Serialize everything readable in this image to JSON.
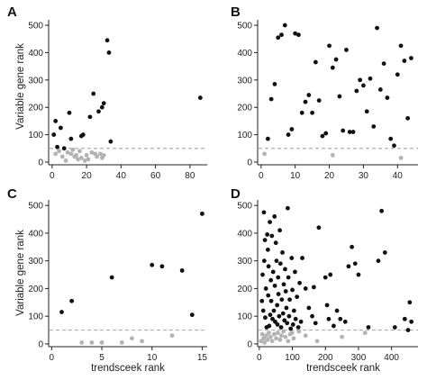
{
  "figure": {
    "ylabel_top": "Variable gene rank",
    "ylabel_bottom": "Variable gene rank",
    "xlabel_left": "trendsceek rank",
    "xlabel_right": "trendsceek rank"
  },
  "colors": {
    "significant": "#111111",
    "non_significant": "#b3b3b3",
    "threshold": "#b0b0b0",
    "axis": "#222222"
  },
  "chart_data": [
    {
      "panel": "A",
      "type": "scatter",
      "xlim": [
        -2,
        90
      ],
      "ylim": [
        -10,
        520
      ],
      "xticks": [
        0,
        20,
        40,
        60,
        80
      ],
      "yticks": [
        0,
        100,
        200,
        300,
        400,
        500
      ],
      "threshold": 50,
      "series": [
        {
          "kind": "significant",
          "points": [
            [
              1,
              100
            ],
            [
              2,
              150
            ],
            [
              3,
              55
            ],
            [
              5,
              125
            ],
            [
              7,
              50
            ],
            [
              10,
              180
            ],
            [
              11,
              85
            ],
            [
              17,
              95
            ],
            [
              18,
              100
            ],
            [
              22,
              165
            ],
            [
              24,
              250
            ],
            [
              27,
              185
            ],
            [
              29,
              200
            ],
            [
              30,
              215
            ],
            [
              32,
              445
            ],
            [
              33,
              400
            ],
            [
              34,
              75
            ],
            [
              86,
              235
            ]
          ]
        },
        {
          "kind": "non_significant",
          "points": [
            [
              2,
              30
            ],
            [
              4,
              40
            ],
            [
              6,
              20
            ],
            [
              8,
              5
            ],
            [
              9,
              35
            ],
            [
              11,
              30
            ],
            [
              12,
              45
            ],
            [
              13,
              20
            ],
            [
              14,
              25
            ],
            [
              15,
              10
            ],
            [
              16,
              40
            ],
            [
              17,
              15
            ],
            [
              19,
              5
            ],
            [
              20,
              25
            ],
            [
              21,
              10
            ],
            [
              23,
              35
            ],
            [
              25,
              30
            ],
            [
              26,
              20
            ],
            [
              28,
              30
            ],
            [
              29,
              15
            ],
            [
              30,
              25
            ]
          ]
        }
      ]
    },
    {
      "panel": "B",
      "type": "scatter",
      "xlim": [
        -1,
        46
      ],
      "ylim": [
        -10,
        520
      ],
      "xticks": [
        0,
        10,
        20,
        30,
        40
      ],
      "yticks": [
        0,
        100,
        200,
        300,
        400,
        500
      ],
      "threshold": 50,
      "series": [
        {
          "kind": "significant",
          "points": [
            [
              2,
              85
            ],
            [
              3,
              230
            ],
            [
              4,
              285
            ],
            [
              5,
              455
            ],
            [
              6,
              465
            ],
            [
              7,
              500
            ],
            [
              8,
              100
            ],
            [
              9,
              120
            ],
            [
              10,
              470
            ],
            [
              11,
              465
            ],
            [
              12,
              180
            ],
            [
              13,
              220
            ],
            [
              14,
              245
            ],
            [
              15,
              180
            ],
            [
              16,
              365
            ],
            [
              17,
              225
            ],
            [
              18,
              95
            ],
            [
              19,
              105
            ],
            [
              20,
              425
            ],
            [
              21,
              345
            ],
            [
              22,
              375
            ],
            [
              23,
              240
            ],
            [
              24,
              115
            ],
            [
              25,
              410
            ],
            [
              26,
              110
            ],
            [
              27,
              110
            ],
            [
              28,
              260
            ],
            [
              29,
              300
            ],
            [
              30,
              280
            ],
            [
              31,
              185
            ],
            [
              32,
              305
            ],
            [
              33,
              130
            ],
            [
              34,
              490
            ],
            [
              35,
              265
            ],
            [
              36,
              360
            ],
            [
              37,
              235
            ],
            [
              38,
              85
            ],
            [
              39,
              60
            ],
            [
              40,
              320
            ],
            [
              41,
              425
            ],
            [
              42,
              370
            ],
            [
              43,
              160
            ],
            [
              44,
              380
            ]
          ]
        },
        {
          "kind": "non_significant",
          "points": [
            [
              1,
              30
            ],
            [
              21,
              25
            ],
            [
              41,
              15
            ]
          ]
        }
      ]
    },
    {
      "panel": "C",
      "type": "scatter",
      "xlim": [
        -0.3,
        15.5
      ],
      "ylim": [
        -10,
        520
      ],
      "xticks": [
        0,
        5,
        10,
        15
      ],
      "yticks": [
        0,
        100,
        200,
        300,
        400,
        500
      ],
      "threshold": 50,
      "series": [
        {
          "kind": "significant",
          "points": [
            [
              1,
              115
            ],
            [
              2,
              155
            ],
            [
              6,
              240
            ],
            [
              10,
              285
            ],
            [
              11,
              280
            ],
            [
              13,
              265
            ],
            [
              14,
              105
            ],
            [
              15,
              470
            ]
          ]
        },
        {
          "kind": "non_significant",
          "points": [
            [
              3,
              5
            ],
            [
              4,
              5
            ],
            [
              5,
              5
            ],
            [
              7,
              5
            ],
            [
              8,
              20
            ],
            [
              9,
              10
            ],
            [
              12,
              30
            ]
          ]
        }
      ]
    },
    {
      "panel": "D",
      "type": "scatter",
      "xlim": [
        -5,
        480
      ],
      "ylim": [
        -10,
        520
      ],
      "xticks": [
        0,
        100,
        200,
        300,
        400
      ],
      "yticks": [
        0,
        100,
        200,
        300,
        400,
        500
      ],
      "threshold": 50,
      "series": [
        {
          "kind": "significant",
          "points": [
            [
              8,
              155
            ],
            [
              10,
              250
            ],
            [
              12,
              120
            ],
            [
              14,
              475
            ],
            [
              15,
              300
            ],
            [
              17,
              375
            ],
            [
              18,
              95
            ],
            [
              20,
              200
            ],
            [
              22,
              60
            ],
            [
              24,
              395
            ],
            [
              26,
              340
            ],
            [
              27,
              175
            ],
            [
              28,
              280
            ],
            [
              30,
              65
            ],
            [
              32,
              440
            ],
            [
              33,
              105
            ],
            [
              35,
              230
            ],
            [
              36,
              155
            ],
            [
              38,
              390
            ],
            [
              40,
              90
            ],
            [
              42,
              260
            ],
            [
              44,
              120
            ],
            [
              46,
              460
            ],
            [
              47,
              210
            ],
            [
              48,
              80
            ],
            [
              50,
              365
            ],
            [
              52,
              300
            ],
            [
              54,
              140
            ],
            [
              55,
              70
            ],
            [
              57,
              240
            ],
            [
              58,
              180
            ],
            [
              60,
              100
            ],
            [
              62,
              410
            ],
            [
              64,
              290
            ],
            [
              66,
              60
            ],
            [
              68,
              160
            ],
            [
              70,
              330
            ],
            [
              72,
              110
            ],
            [
              74,
              215
            ],
            [
              76,
              85
            ],
            [
              78,
              270
            ],
            [
              80,
              190
            ],
            [
              82,
              130
            ],
            [
              84,
              75
            ],
            [
              86,
              490
            ],
            [
              88,
              240
            ],
            [
              90,
              100
            ],
            [
              92,
              160
            ],
            [
              95,
              55
            ],
            [
              98,
              310
            ],
            [
              100,
              195
            ],
            [
              102,
              70
            ],
            [
              105,
              120
            ],
            [
              108,
              260
            ],
            [
              110,
              90
            ],
            [
              114,
              170
            ],
            [
              118,
              60
            ],
            [
              122,
              220
            ],
            [
              126,
              80
            ],
            [
              130,
              310
            ],
            [
              140,
              200
            ],
            [
              150,
              130
            ],
            [
              160,
              100
            ],
            [
              165,
              205
            ],
            [
              170,
              75
            ],
            [
              180,
              420
            ],
            [
              200,
              240
            ],
            [
              205,
              140
            ],
            [
              210,
              90
            ],
            [
              215,
              250
            ],
            [
              225,
              65
            ],
            [
              235,
              120
            ],
            [
              245,
              90
            ],
            [
              260,
              80
            ],
            [
              270,
              280
            ],
            [
              280,
              350
            ],
            [
              290,
              290
            ],
            [
              300,
              250
            ],
            [
              330,
              60
            ],
            [
              360,
              300
            ],
            [
              370,
              480
            ],
            [
              380,
              330
            ],
            [
              410,
              60
            ],
            [
              440,
              90
            ],
            [
              450,
              50
            ],
            [
              455,
              150
            ],
            [
              460,
              80
            ]
          ]
        },
        {
          "kind": "non_significant",
          "points": [
            [
              5,
              10
            ],
            [
              9,
              35
            ],
            [
              13,
              20
            ],
            [
              16,
              5
            ],
            [
              21,
              30
            ],
            [
              25,
              15
            ],
            [
              29,
              40
            ],
            [
              34,
              25
            ],
            [
              39,
              10
            ],
            [
              45,
              35
            ],
            [
              51,
              20
            ],
            [
              56,
              40
            ],
            [
              63,
              15
            ],
            [
              67,
              30
            ],
            [
              73,
              45
            ],
            [
              79,
              25
            ],
            [
              87,
              10
            ],
            [
              93,
              35
            ],
            [
              99,
              40
            ],
            [
              104,
              20
            ],
            [
              120,
              45
            ],
            [
              140,
              30
            ],
            [
              175,
              10
            ],
            [
              250,
              25
            ],
            [
              320,
              40
            ]
          ]
        }
      ]
    }
  ]
}
